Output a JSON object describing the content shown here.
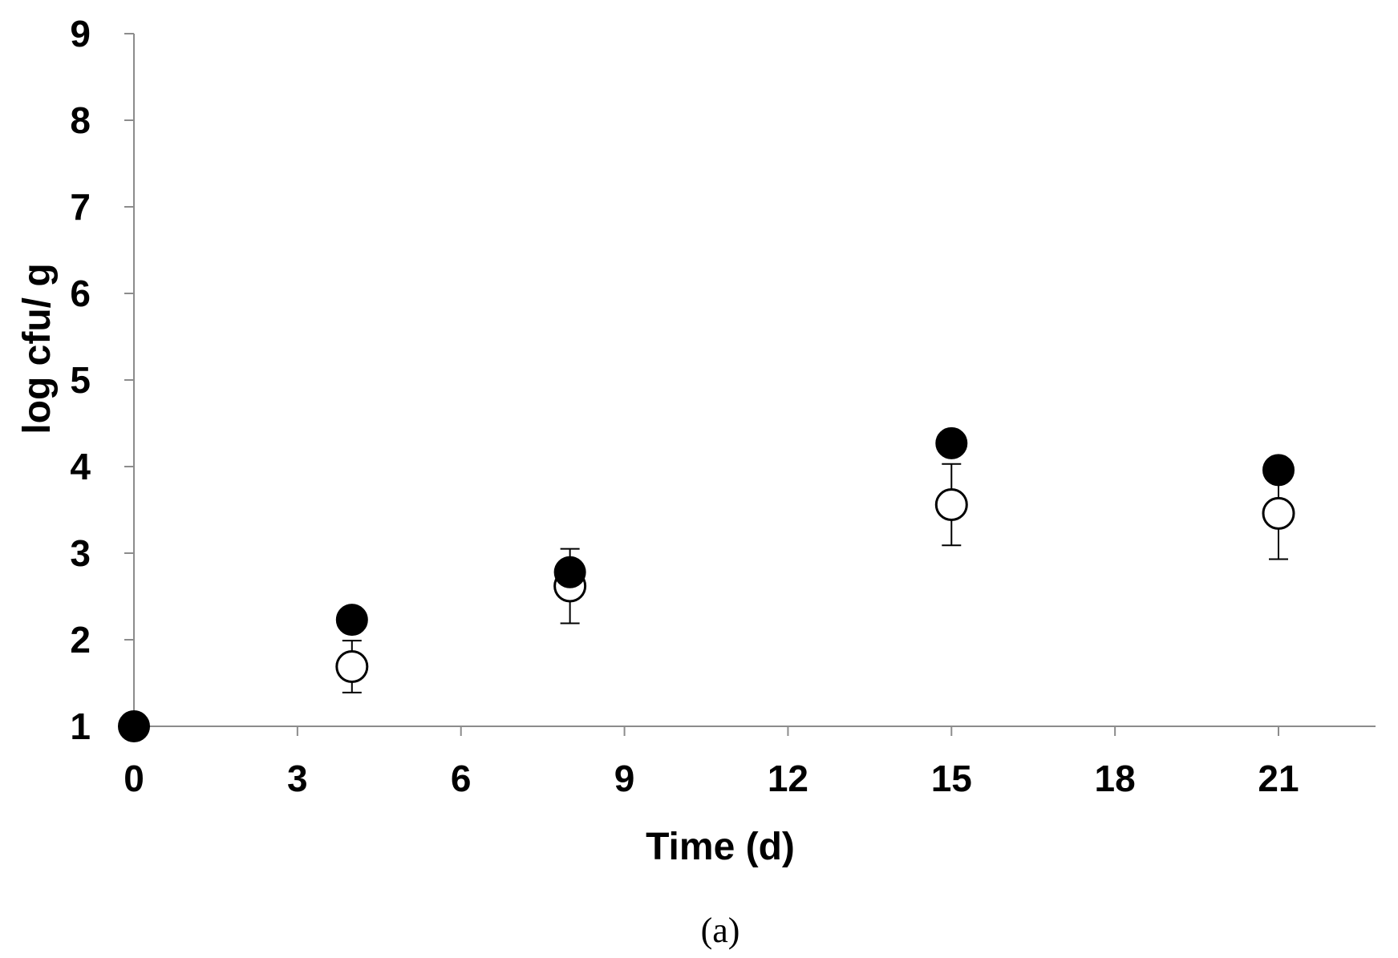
{
  "chart_data": {
    "type": "scatter",
    "xlabel": "Time (d)",
    "ylabel": "log cfu/ g",
    "panel_label": "(a)",
    "xlim": [
      0,
      23
    ],
    "ylim": [
      1,
      9
    ],
    "x_ticks": [
      0,
      3,
      6,
      9,
      12,
      15,
      18,
      21
    ],
    "y_ticks": [
      1,
      2,
      3,
      4,
      5,
      6,
      7,
      8,
      9
    ],
    "grid": false,
    "series": [
      {
        "marker": "filled-circle",
        "color": "#000000",
        "points": [
          {
            "x": 0,
            "y": 1.0,
            "err": 0
          },
          {
            "x": 4,
            "y": 2.23,
            "err": 0
          },
          {
            "x": 8,
            "y": 2.78,
            "err": 0
          },
          {
            "x": 15,
            "y": 4.27,
            "err": 0
          },
          {
            "x": 21,
            "y": 3.96,
            "err": 0
          }
        ]
      },
      {
        "marker": "open-circle",
        "color": "#000000",
        "points": [
          {
            "x": 4,
            "y": 1.69,
            "err": 0.3
          },
          {
            "x": 8,
            "y": 2.62,
            "err": 0.43
          },
          {
            "x": 15,
            "y": 3.56,
            "err": 0.47
          },
          {
            "x": 21,
            "y": 3.46,
            "err": 0.53
          }
        ]
      }
    ]
  }
}
